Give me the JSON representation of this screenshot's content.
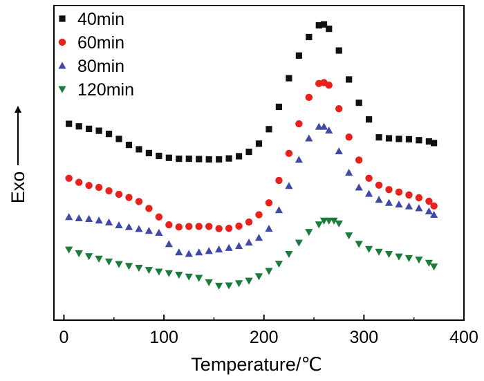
{
  "chart_data": {
    "type": "scatter",
    "xlabel": "Temperature/℃",
    "ylabel": "Exo",
    "xlim": [
      -10,
      400
    ],
    "ylim": [
      0,
      100
    ],
    "x_ticks": [
      0,
      100,
      200,
      300,
      400
    ],
    "y_tick_labels": false,
    "grid": false,
    "legend_position": "top-left",
    "series": [
      {
        "name": "40min",
        "marker": "square",
        "color": "#111111",
        "x": [
          5,
          15,
          25,
          35,
          45,
          55,
          65,
          75,
          85,
          95,
          105,
          115,
          125,
          135,
          145,
          155,
          165,
          175,
          185,
          195,
          205,
          215,
          225,
          235,
          245,
          255,
          260,
          265,
          275,
          285,
          295,
          305,
          315,
          325,
          335,
          345,
          355,
          365,
          370
        ],
        "y": [
          62.4,
          61.6,
          60.8,
          60.2,
          59.2,
          57.6,
          55.7,
          54.3,
          53.1,
          52.2,
          51.6,
          51.3,
          51.3,
          51.2,
          51.1,
          51.1,
          51.4,
          52.1,
          53.5,
          56.1,
          60.7,
          67.8,
          76.9,
          84.1,
          90.0,
          93.7,
          94.0,
          92.6,
          85.7,
          76.5,
          69.1,
          63.8,
          58.1,
          57.8,
          57.6,
          57.5,
          57.2,
          56.8,
          56.3
        ]
      },
      {
        "name": "60min",
        "marker": "circle",
        "color": "#e8211d",
        "x": [
          5,
          15,
          25,
          35,
          45,
          55,
          65,
          75,
          85,
          95,
          105,
          115,
          125,
          135,
          145,
          155,
          165,
          175,
          185,
          195,
          205,
          215,
          225,
          235,
          245,
          255,
          260,
          265,
          275,
          285,
          295,
          305,
          315,
          325,
          335,
          345,
          355,
          365,
          370
        ],
        "y": [
          45.1,
          43.8,
          42.8,
          42.2,
          41.1,
          40.0,
          39.0,
          37.7,
          35.5,
          32.8,
          30.3,
          29.6,
          29.8,
          29.8,
          29.8,
          29.1,
          29.2,
          29.9,
          31.2,
          33.5,
          37.3,
          44.4,
          53.0,
          62.4,
          70.8,
          75.2,
          75.5,
          74.7,
          67.2,
          58.2,
          50.9,
          45.1,
          42.9,
          41.5,
          40.7,
          39.8,
          38.9,
          37.8,
          36.3
        ]
      },
      {
        "name": "80min",
        "marker": "triangle-up",
        "color": "#404aa4",
        "x": [
          5,
          15,
          25,
          35,
          45,
          55,
          65,
          75,
          85,
          95,
          105,
          115,
          125,
          135,
          145,
          155,
          165,
          175,
          185,
          195,
          205,
          215,
          225,
          235,
          245,
          255,
          260,
          265,
          275,
          285,
          295,
          305,
          315,
          325,
          335,
          345,
          355,
          365,
          370
        ],
        "y": [
          32.8,
          32.4,
          32.2,
          31.7,
          31.1,
          30.2,
          29.6,
          29.0,
          28.4,
          27.8,
          24.2,
          21.6,
          21.1,
          21.6,
          22.0,
          22.5,
          23.0,
          23.6,
          24.7,
          26.2,
          29.1,
          35.0,
          42.7,
          51.0,
          57.8,
          61.5,
          61.5,
          60.3,
          53.7,
          46.9,
          42.2,
          40.2,
          38.3,
          37.3,
          36.8,
          36.2,
          35.6,
          34.6,
          33.5
        ]
      },
      {
        "name": "120min",
        "marker": "triangle-down",
        "color": "#1a7d3c",
        "x": [
          5,
          15,
          25,
          35,
          45,
          55,
          65,
          75,
          85,
          95,
          105,
          115,
          125,
          135,
          145,
          155,
          165,
          175,
          185,
          195,
          205,
          215,
          225,
          235,
          245,
          255,
          260,
          265,
          270,
          275,
          285,
          295,
          305,
          315,
          325,
          335,
          345,
          355,
          365,
          370
        ],
        "y": [
          22.4,
          21.2,
          20.3,
          19.5,
          18.6,
          17.8,
          17.2,
          16.6,
          15.9,
          15.4,
          14.9,
          14.4,
          13.8,
          13.4,
          12.0,
          10.9,
          11.0,
          11.7,
          12.5,
          13.9,
          15.6,
          17.9,
          21.0,
          24.6,
          28.0,
          30.4,
          31.6,
          31.6,
          31.6,
          30.7,
          26.9,
          24.2,
          22.6,
          21.7,
          21.0,
          20.2,
          19.7,
          19.2,
          18.2,
          17.0
        ]
      }
    ]
  }
}
